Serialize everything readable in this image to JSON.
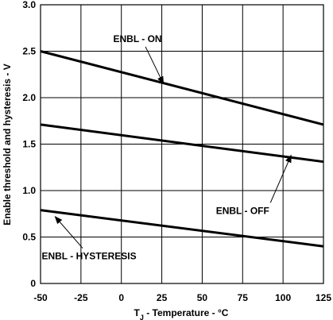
{
  "chart_data": {
    "type": "line",
    "title": "",
    "xlabel": {
      "main": "T",
      "sub": "J",
      "rest": " - Temperature - °C"
    },
    "ylabel": "Enable threshold and hysteresis - V",
    "xlim": [
      -50,
      125
    ],
    "ylim": [
      0,
      3.0
    ],
    "x_ticks": [
      -50,
      -25,
      0,
      25,
      50,
      75,
      100,
      125
    ],
    "x_tick_labels": [
      "-50",
      "-25",
      "0",
      "25",
      "50",
      "75",
      "100",
      "125"
    ],
    "y_ticks": [
      0,
      0.5,
      1.0,
      1.5,
      2.0,
      2.5,
      3.0
    ],
    "y_tick_labels": [
      "0",
      "0.5",
      "1.0",
      "1.5",
      "2.0",
      "2.5",
      "3.0"
    ],
    "grid": true,
    "series": [
      {
        "name": "ENBL - ON",
        "x": [
          -50,
          125
        ],
        "y": [
          2.5,
          1.71
        ]
      },
      {
        "name": "ENBL - OFF",
        "x": [
          -50,
          125
        ],
        "y": [
          1.71,
          1.31
        ]
      },
      {
        "name": "ENBL - HYSTERESIS",
        "x": [
          -50,
          125
        ],
        "y": [
          0.79,
          0.4
        ]
      }
    ],
    "annotations": [
      {
        "text": "ENBL - ON",
        "label_at": [
          10,
          2.6
        ],
        "arrow_to": [
          26,
          2.15
        ]
      },
      {
        "text": "ENBL - OFF",
        "label_at": [
          75,
          0.75
        ],
        "arrow_to": [
          105,
          1.38
        ]
      },
      {
        "text": "ENBL - HYSTERESIS",
        "label_at": [
          -20,
          0.26
        ],
        "arrow_to": [
          -41,
          0.72
        ]
      }
    ]
  }
}
